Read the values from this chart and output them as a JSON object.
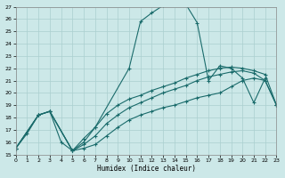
{
  "xlabel": "Humidex (Indice chaleur)",
  "xlim": [
    0,
    23
  ],
  "ylim": [
    15,
    27
  ],
  "xticks": [
    0,
    1,
    2,
    3,
    4,
    5,
    6,
    7,
    8,
    9,
    10,
    11,
    12,
    13,
    14,
    15,
    16,
    17,
    18,
    19,
    20,
    21,
    22,
    23
  ],
  "yticks": [
    15,
    16,
    17,
    18,
    19,
    20,
    21,
    22,
    23,
    24,
    25,
    26,
    27
  ],
  "bg_color": "#cce8e8",
  "line_color": "#1a6b6b",
  "grid_color": "#aacfcf",
  "s1_x": [
    0,
    1,
    2,
    3,
    4,
    5,
    6,
    7,
    10,
    11,
    12,
    13,
    14,
    15,
    16,
    17,
    18,
    19,
    20,
    21,
    22
  ],
  "s1_y": [
    15.5,
    16.7,
    18.2,
    18.5,
    16.0,
    15.3,
    16.3,
    17.2,
    22.0,
    25.8,
    26.5,
    27.1,
    27.2,
    27.2,
    25.7,
    21.0,
    22.2,
    22.0,
    21.2,
    19.2,
    21.2
  ],
  "s2_x": [
    0,
    2,
    3,
    5,
    6,
    7,
    8,
    9,
    10,
    11,
    12,
    13,
    14,
    15,
    16,
    17,
    18,
    19,
    20,
    21,
    22,
    23
  ],
  "s2_y": [
    15.5,
    18.2,
    18.5,
    15.3,
    16.0,
    17.2,
    18.3,
    19.0,
    19.5,
    19.8,
    20.2,
    20.5,
    20.8,
    21.2,
    21.5,
    21.8,
    22.0,
    22.1,
    22.0,
    21.8,
    21.5,
    19.0
  ],
  "s3_x": [
    0,
    2,
    3,
    5,
    6,
    7,
    8,
    9,
    10,
    11,
    12,
    13,
    14,
    15,
    16,
    17,
    18,
    19,
    20,
    21,
    22,
    23
  ],
  "s3_y": [
    15.5,
    18.2,
    18.5,
    15.3,
    15.8,
    16.5,
    17.5,
    18.2,
    18.8,
    19.2,
    19.6,
    20.0,
    20.3,
    20.6,
    21.0,
    21.3,
    21.5,
    21.7,
    21.8,
    21.6,
    21.0,
    19.0
  ],
  "s4_x": [
    0,
    2,
    3,
    5,
    6,
    7,
    8,
    9,
    10,
    11,
    12,
    13,
    14,
    15,
    16,
    17,
    18,
    19,
    20,
    21,
    22,
    23
  ],
  "s4_y": [
    15.5,
    18.2,
    18.5,
    15.3,
    15.5,
    15.8,
    16.5,
    17.2,
    17.8,
    18.2,
    18.5,
    18.8,
    19.0,
    19.3,
    19.6,
    19.8,
    20.0,
    20.5,
    21.0,
    21.2,
    21.0,
    19.0
  ]
}
